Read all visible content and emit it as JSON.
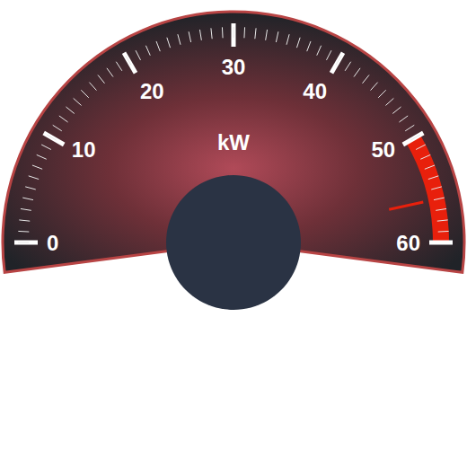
{
  "chart_data": {
    "type": "gauge",
    "title": "kW",
    "value": 56,
    "ylim": [
      0,
      60
    ],
    "yticks": [
      0,
      10,
      20,
      30,
      40,
      50,
      60
    ],
    "bands": [
      {
        "from": 50,
        "to": 60,
        "color": "#e8200c"
      }
    ]
  }
}
